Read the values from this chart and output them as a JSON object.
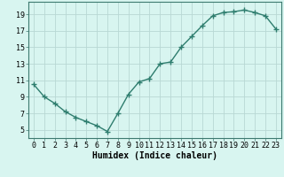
{
  "x": [
    0,
    1,
    2,
    3,
    4,
    5,
    6,
    7,
    8,
    9,
    10,
    11,
    12,
    13,
    14,
    15,
    16,
    17,
    18,
    19,
    20,
    21,
    22,
    23
  ],
  "y": [
    10.5,
    9.0,
    8.2,
    7.2,
    6.5,
    6.0,
    5.5,
    4.8,
    7.0,
    9.3,
    10.8,
    11.2,
    13.0,
    13.2,
    15.0,
    16.3,
    17.6,
    18.8,
    19.2,
    19.3,
    19.5,
    19.2,
    18.8,
    17.2
  ],
  "line_color": "#2e7d6e",
  "marker": "+",
  "marker_size": 4,
  "marker_linewidth": 1.0,
  "line_width": 1.0,
  "bg_color": "#d8f5f0",
  "grid_color": "#b8d8d4",
  "xlabel": "Humidex (Indice chaleur)",
  "xlim_min": -0.5,
  "xlim_max": 23.5,
  "ylim_min": 4,
  "ylim_max": 20.5,
  "yticks": [
    5,
    7,
    9,
    11,
    13,
    15,
    17,
    19
  ],
  "xticks": [
    0,
    1,
    2,
    3,
    4,
    5,
    6,
    7,
    8,
    9,
    10,
    11,
    12,
    13,
    14,
    15,
    16,
    17,
    18,
    19,
    20,
    21,
    22,
    23
  ],
  "tick_fontsize": 6,
  "label_fontsize": 7,
  "spine_color": "#3d7a70"
}
